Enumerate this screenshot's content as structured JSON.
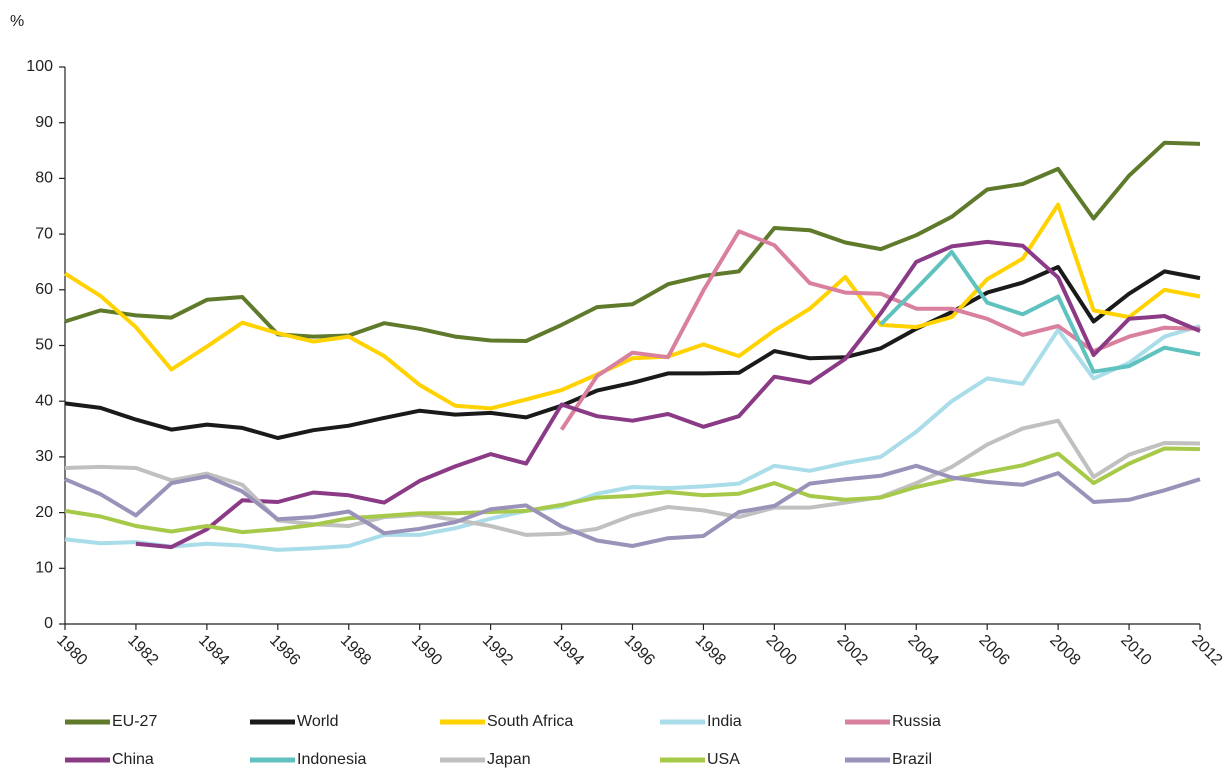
{
  "chart_data": {
    "type": "line",
    "ylabel": "%",
    "x": [
      1980,
      1981,
      1982,
      1983,
      1984,
      1985,
      1986,
      1987,
      1988,
      1989,
      1990,
      1991,
      1992,
      1993,
      1994,
      1995,
      1996,
      1997,
      1998,
      1999,
      2000,
      2001,
      2002,
      2003,
      2004,
      2005,
      2006,
      2007,
      2008,
      2009,
      2010,
      2011,
      2012
    ],
    "xlim": [
      1980,
      2012
    ],
    "xticks": [
      1980,
      1982,
      1984,
      1986,
      1988,
      1990,
      1992,
      1994,
      1996,
      1998,
      2000,
      2002,
      2004,
      2006,
      2008,
      2010,
      2012
    ],
    "ylim": [
      0,
      100
    ],
    "yticks": [
      0,
      10,
      20,
      30,
      40,
      50,
      60,
      70,
      80,
      90,
      100
    ],
    "grid": false,
    "legend": "bottom",
    "series": [
      {
        "name": "EU-27",
        "color": "#5f7a2a",
        "values": [
          54.3,
          56.3,
          55.4,
          55.0,
          58.2,
          58.7,
          52.0,
          51.6,
          51.8,
          54.0,
          53.0,
          51.6,
          50.9,
          50.8,
          53.7,
          56.9,
          57.4,
          61.0,
          62.5,
          63.3,
          71.1,
          70.7,
          68.5,
          67.3,
          69.8,
          73.1,
          78.0,
          79.0,
          81.7,
          72.8,
          80.5,
          86.4,
          86.2
        ]
      },
      {
        "name": "World",
        "color": "#1a1a1a",
        "values": [
          39.6,
          38.8,
          36.7,
          34.9,
          35.8,
          35.2,
          33.4,
          34.8,
          35.6,
          37.0,
          38.3,
          37.6,
          37.9,
          37.1,
          39.2,
          41.9,
          43.3,
          45.0,
          45.0,
          45.1,
          49.0,
          47.7,
          47.9,
          49.5,
          53.0,
          56.0,
          59.5,
          61.3,
          64.1,
          54.3,
          59.3,
          63.3,
          62.1
        ]
      },
      {
        "name": "South Africa",
        "color": "#ffd200",
        "values": [
          62.9,
          58.9,
          53.3,
          45.7,
          49.8,
          54.1,
          52.2,
          50.7,
          51.6,
          48.1,
          42.9,
          39.2,
          38.7,
          40.3,
          42.0,
          44.8,
          47.7,
          48.0,
          50.2,
          48.1,
          52.7,
          56.6,
          62.3,
          53.7,
          53.3,
          55.1,
          61.9,
          65.6,
          75.3,
          56.3,
          55.1,
          60.0,
          58.8
        ]
      },
      {
        "name": "India",
        "color": "#a9dde9",
        "values": [
          15.2,
          14.5,
          14.7,
          13.9,
          14.4,
          14.1,
          13.3,
          13.6,
          14.0,
          16.0,
          16.0,
          17.2,
          18.9,
          20.3,
          21.1,
          23.4,
          24.6,
          24.4,
          24.7,
          25.2,
          28.4,
          27.5,
          28.9,
          30.0,
          34.5,
          40.0,
          44.1,
          43.1,
          52.8,
          44.1,
          46.9,
          51.6,
          53.5
        ]
      },
      {
        "name": "Russia",
        "color": "#d9809f",
        "values": [
          null,
          null,
          null,
          null,
          null,
          null,
          null,
          null,
          null,
          null,
          null,
          null,
          null,
          null,
          34.9,
          44.5,
          48.7,
          47.9,
          59.9,
          70.5,
          68.0,
          61.2,
          59.5,
          59.3,
          56.6,
          56.6,
          54.8,
          51.9,
          53.5,
          49.0,
          51.6,
          53.2,
          53.0
        ]
      },
      {
        "name": "China",
        "color": "#8b3a86",
        "values": [
          null,
          null,
          14.4,
          13.8,
          17.0,
          22.2,
          21.9,
          23.6,
          23.1,
          21.8,
          25.7,
          28.3,
          30.5,
          28.8,
          39.4,
          37.3,
          36.5,
          37.7,
          35.4,
          37.3,
          44.4,
          43.3,
          47.6,
          55.8,
          65.0,
          67.8,
          68.6,
          67.9,
          62.2,
          48.3,
          54.8,
          55.3,
          52.6
        ]
      },
      {
        "name": "Indonesia",
        "color": "#5fc2bf",
        "values": [
          null,
          null,
          null,
          null,
          null,
          null,
          null,
          null,
          null,
          null,
          null,
          null,
          null,
          null,
          null,
          null,
          null,
          null,
          null,
          null,
          null,
          null,
          null,
          53.8,
          60.2,
          66.8,
          57.7,
          55.6,
          58.8,
          45.3,
          46.3,
          49.6,
          48.4
        ]
      },
      {
        "name": "Japan",
        "color": "#c0c0c0",
        "values": [
          28.0,
          28.2,
          28.0,
          25.8,
          27.0,
          25.0,
          18.6,
          17.9,
          17.6,
          19.2,
          19.6,
          18.7,
          17.6,
          16.0,
          16.2,
          17.1,
          19.5,
          21.0,
          20.4,
          19.2,
          20.9,
          20.9,
          21.8,
          22.8,
          25.3,
          28.2,
          32.2,
          35.1,
          36.5,
          26.4,
          30.4,
          32.5,
          32.4
        ]
      },
      {
        "name": "USA",
        "color": "#a7c94a",
        "values": [
          20.3,
          19.3,
          17.6,
          16.6,
          17.6,
          16.5,
          17.0,
          17.8,
          19.0,
          19.4,
          19.9,
          19.9,
          20.1,
          20.3,
          21.4,
          22.7,
          23.0,
          23.7,
          23.1,
          23.4,
          25.3,
          23.0,
          22.3,
          22.7,
          24.6,
          26.0,
          27.3,
          28.5,
          30.6,
          25.3,
          28.8,
          31.5,
          31.4
        ]
      },
      {
        "name": "Brazil",
        "color": "#9a92b8",
        "values": [
          26.0,
          23.3,
          19.5,
          25.3,
          26.5,
          23.8,
          18.8,
          19.2,
          20.2,
          16.3,
          17.1,
          18.3,
          20.6,
          21.3,
          17.5,
          15.0,
          14.0,
          15.4,
          15.8,
          20.1,
          21.2,
          25.2,
          26.0,
          26.6,
          28.4,
          26.3,
          25.5,
          25.0,
          27.1,
          21.9,
          22.3,
          24.0,
          26.0
        ]
      }
    ]
  }
}
